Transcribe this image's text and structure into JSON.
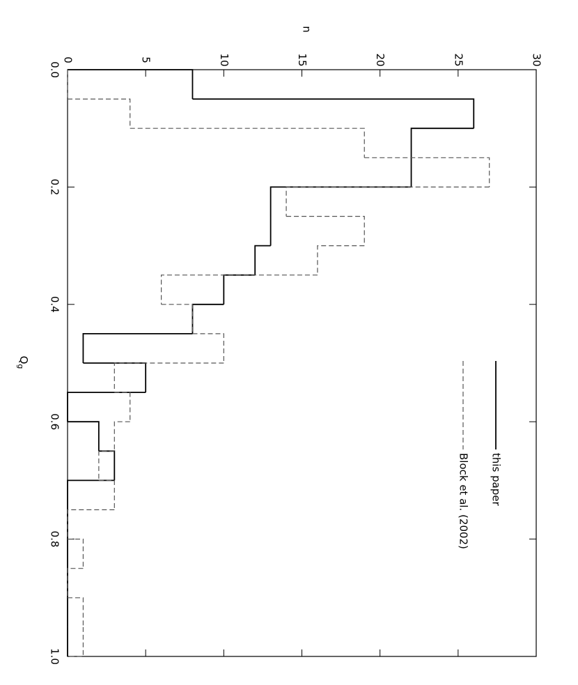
{
  "chart_data": {
    "type": "histogram",
    "x_label": "Q",
    "x_label_sub": "g",
    "y_label": "n",
    "bins": [
      0,
      0.05,
      0.1,
      0.15,
      0.2,
      0.25,
      0.3,
      0.35,
      0.4,
      0.45,
      0.5,
      0.55,
      0.6,
      0.65,
      0.7,
      0.75,
      0.8,
      0.85,
      0.9,
      0.95,
      1.0
    ],
    "series": [
      {
        "name": "this paper",
        "color": "#000000",
        "dash": false,
        "values": [
          8,
          26,
          22,
          22,
          13,
          13,
          12,
          10,
          8,
          1,
          5,
          0,
          2,
          3,
          0,
          0,
          0,
          0,
          0,
          0
        ]
      },
      {
        "name": "Block et al. (2002)",
        "color": "#555555",
        "dash": true,
        "values": [
          0,
          4,
          19,
          27,
          14,
          19,
          16,
          6,
          8,
          10,
          3,
          4,
          3,
          2,
          3,
          0,
          1,
          0,
          1,
          1
        ]
      }
    ],
    "xlim": [
      0,
      1.0
    ],
    "xticks": [
      {
        "value": 0,
        "label": "0.0"
      },
      0.2,
      0.4,
      0.6,
      0.8,
      {
        "value": 1,
        "label": "1.0"
      }
    ],
    "ylim": [
      0,
      30
    ],
    "yticks": [
      0,
      5,
      10,
      15,
      20,
      25,
      30
    ]
  }
}
